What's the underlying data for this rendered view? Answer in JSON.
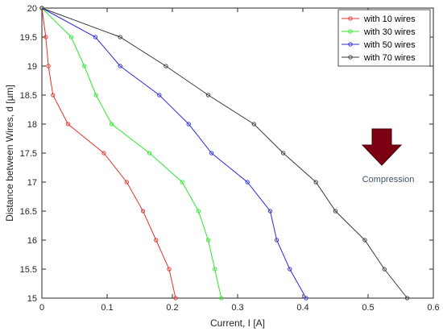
{
  "chart_data": {
    "type": "line",
    "xlabel": "Current, I [A]",
    "ylabel": "Distance between Wires, d [µm]",
    "xlim": [
      0,
      0.6
    ],
    "ylim": [
      15,
      20
    ],
    "xticks": [
      "0",
      "0.1",
      "0.2",
      "0.3",
      "0.4",
      "0.5",
      "0.6"
    ],
    "xtick_values": [
      0,
      0.1,
      0.2,
      0.3,
      0.4,
      0.5,
      0.6
    ],
    "yticks": [
      "15",
      "15.5",
      "16",
      "16.5",
      "17",
      "17.5",
      "18",
      "18.5",
      "19",
      "19.5",
      "20"
    ],
    "ytick_values": [
      15,
      15.5,
      16,
      16.5,
      17,
      17.5,
      18,
      18.5,
      19,
      19.5,
      20
    ],
    "grid": false,
    "legend_position": "top-right",
    "y": [
      20,
      19.5,
      19,
      18.5,
      18,
      17.5,
      17,
      16.5,
      16,
      15.5,
      15
    ],
    "series": [
      {
        "name": "with 10 wires",
        "color": "#e8302b",
        "x": [
          0,
          0.006,
          0.01,
          0.017,
          0.04,
          0.095,
          0.13,
          0.155,
          0.175,
          0.195,
          0.205
        ]
      },
      {
        "name": "with 30 wires",
        "color": "#2ee82e",
        "x": [
          0,
          0.045,
          0.065,
          0.083,
          0.107,
          0.165,
          0.215,
          0.24,
          0.255,
          0.265,
          0.275
        ]
      },
      {
        "name": "with 50 wires",
        "color": "#2b2bdd",
        "x": [
          0,
          0.082,
          0.12,
          0.18,
          0.225,
          0.26,
          0.315,
          0.35,
          0.36,
          0.38,
          0.405
        ]
      },
      {
        "name": "with 70 wires",
        "color": "#3a3a3a",
        "x": [
          0,
          0.12,
          0.19,
          0.255,
          0.325,
          0.37,
          0.42,
          0.45,
          0.495,
          0.525,
          0.56
        ]
      }
    ],
    "annotation": {
      "text": "Compression",
      "icon": "down-arrow-icon",
      "color": "#7b0011"
    }
  }
}
